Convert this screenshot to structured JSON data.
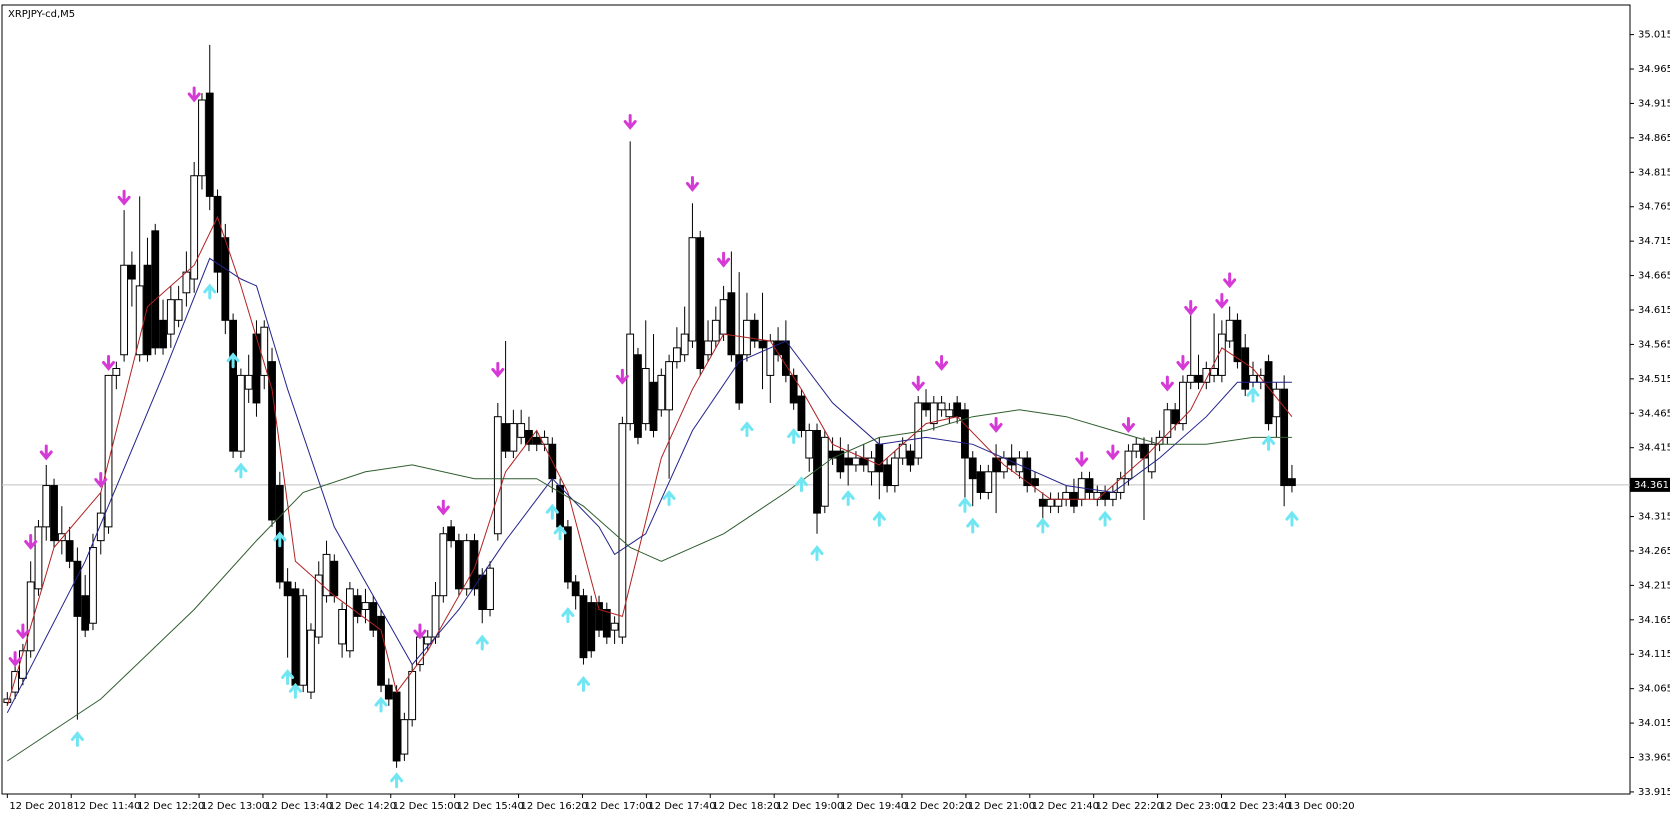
{
  "chart_data": {
    "type": "candlestick",
    "title": "XRPJPY-cd,M5",
    "ylim": [
      33.912,
      35.058
    ],
    "yticks": [
      35.015,
      34.965,
      34.915,
      34.865,
      34.815,
      34.765,
      34.715,
      34.665,
      34.615,
      34.565,
      34.515,
      34.465,
      34.415,
      34.365,
      34.315,
      34.265,
      34.215,
      34.165,
      34.115,
      34.065,
      34.015,
      33.965,
      33.915
    ],
    "current_price": 34.361,
    "x_labels": [
      "12 Dec 2018",
      "12 Dec 11:40",
      "12 Dec 12:20",
      "12 Dec 13:00",
      "12 Dec 13:40",
      "12 Dec 14:20",
      "12 Dec 15:00",
      "12 Dec 15:40",
      "12 Dec 16:20",
      "12 Dec 17:00",
      "12 Dec 17:40",
      "12 Dec 18:20",
      "12 Dec 19:00",
      "12 Dec 19:40",
      "12 Dec 20:20",
      "12 Dec 21:00",
      "12 Dec 21:40",
      "12 Dec 22:20",
      "12 Dec 23:00",
      "12 Dec 23:40",
      "13 Dec 00:20"
    ],
    "up_color": "#ffffff",
    "down_color": "#000000",
    "ohlc": [
      [
        34.045,
        34.06,
        34.04,
        34.05
      ],
      [
        34.06,
        34.1,
        34.05,
        34.09
      ],
      [
        34.08,
        34.13,
        34.07,
        34.12
      ],
      [
        34.12,
        34.25,
        34.11,
        34.22
      ],
      [
        34.21,
        34.31,
        34.2,
        34.3
      ],
      [
        34.3,
        34.39,
        34.28,
        34.36
      ],
      [
        34.36,
        34.37,
        34.27,
        34.28
      ],
      [
        34.28,
        34.33,
        34.26,
        34.29
      ],
      [
        34.28,
        34.3,
        34.24,
        34.25
      ],
      [
        34.25,
        34.27,
        34.02,
        34.17
      ],
      [
        34.2,
        34.23,
        34.14,
        34.15
      ],
      [
        34.16,
        34.29,
        34.15,
        34.27
      ],
      [
        34.28,
        34.35,
        34.26,
        34.32
      ],
      [
        34.3,
        34.52,
        34.29,
        34.52
      ],
      [
        34.52,
        34.54,
        34.5,
        34.53
      ],
      [
        34.55,
        34.76,
        34.54,
        34.68
      ],
      [
        34.68,
        34.7,
        34.62,
        34.66
      ],
      [
        34.55,
        34.78,
        34.54,
        34.65
      ],
      [
        34.68,
        34.72,
        34.54,
        34.55
      ],
      [
        34.73,
        34.74,
        34.55,
        34.56
      ],
      [
        34.6,
        34.63,
        34.55,
        34.56
      ],
      [
        34.58,
        34.65,
        34.56,
        34.63
      ],
      [
        34.6,
        34.65,
        34.59,
        34.63
      ],
      [
        34.64,
        34.7,
        34.62,
        34.67
      ],
      [
        34.66,
        34.83,
        34.64,
        34.81
      ],
      [
        34.81,
        34.93,
        34.79,
        34.92
      ],
      [
        34.93,
        35.0,
        34.76,
        34.78
      ],
      [
        34.78,
        34.79,
        34.64,
        34.67
      ],
      [
        34.72,
        34.74,
        34.58,
        34.6
      ],
      [
        34.6,
        34.61,
        34.4,
        34.41
      ],
      [
        34.41,
        34.53,
        34.4,
        34.52
      ],
      [
        34.5,
        34.55,
        34.48,
        34.52
      ],
      [
        34.58,
        34.6,
        34.46,
        34.48
      ],
      [
        34.52,
        34.6,
        34.5,
        34.59
      ],
      [
        34.54,
        34.56,
        34.3,
        34.31
      ],
      [
        34.36,
        34.38,
        34.21,
        34.22
      ],
      [
        34.22,
        34.24,
        34.11,
        34.2
      ],
      [
        34.21,
        34.22,
        34.06,
        34.07
      ],
      [
        34.07,
        34.21,
        34.06,
        34.2
      ],
      [
        34.06,
        34.16,
        34.05,
        34.15
      ],
      [
        34.14,
        34.25,
        34.13,
        34.23
      ],
      [
        34.2,
        34.28,
        34.19,
        34.26
      ],
      [
        34.25,
        34.26,
        34.19,
        34.2
      ],
      [
        34.13,
        34.19,
        34.11,
        34.18
      ],
      [
        34.12,
        34.22,
        34.11,
        34.21
      ],
      [
        34.2,
        34.21,
        34.16,
        34.17
      ],
      [
        34.18,
        34.21,
        34.16,
        34.19
      ],
      [
        34.19,
        34.2,
        34.14,
        34.15
      ],
      [
        34.17,
        34.18,
        34.06,
        34.07
      ],
      [
        34.07,
        34.08,
        34.04,
        34.05
      ],
      [
        34.06,
        34.07,
        33.95,
        33.96
      ],
      [
        33.97,
        34.03,
        33.96,
        34.02
      ],
      [
        34.02,
        34.1,
        34.01,
        34.09
      ],
      [
        34.1,
        34.15,
        34.09,
        34.14
      ],
      [
        34.13,
        34.15,
        34.12,
        34.14
      ],
      [
        34.14,
        34.22,
        34.13,
        34.2
      ],
      [
        34.2,
        34.3,
        34.19,
        34.29
      ],
      [
        34.3,
        34.31,
        34.27,
        34.28
      ],
      [
        34.28,
        34.29,
        34.2,
        34.21
      ],
      [
        34.21,
        34.29,
        34.2,
        34.28
      ],
      [
        34.28,
        34.29,
        34.2,
        34.21
      ],
      [
        34.23,
        34.24,
        34.16,
        34.18
      ],
      [
        34.18,
        34.25,
        34.17,
        34.24
      ],
      [
        34.29,
        34.48,
        34.28,
        34.46
      ],
      [
        34.45,
        34.57,
        34.4,
        34.41
      ],
      [
        34.41,
        34.47,
        34.4,
        34.45
      ],
      [
        34.43,
        34.47,
        34.42,
        34.45
      ],
      [
        34.44,
        34.46,
        34.41,
        34.42
      ],
      [
        34.43,
        34.44,
        34.41,
        34.42
      ],
      [
        34.42,
        34.44,
        34.41,
        34.43
      ],
      [
        34.42,
        34.43,
        34.35,
        34.37
      ],
      [
        34.36,
        34.37,
        34.29,
        34.3
      ],
      [
        34.3,
        34.31,
        34.21,
        34.22
      ],
      [
        34.22,
        34.23,
        34.18,
        34.2
      ],
      [
        34.2,
        34.21,
        34.1,
        34.11
      ],
      [
        34.19,
        34.2,
        34.11,
        34.12
      ],
      [
        34.19,
        34.2,
        34.14,
        34.15
      ],
      [
        34.18,
        34.19,
        34.13,
        34.14
      ],
      [
        34.15,
        34.17,
        34.13,
        34.16
      ],
      [
        34.14,
        34.46,
        34.13,
        34.45
      ],
      [
        34.45,
        34.86,
        34.44,
        34.58
      ],
      [
        34.55,
        34.56,
        34.42,
        34.43
      ],
      [
        34.45,
        34.6,
        34.44,
        34.53
      ],
      [
        34.51,
        34.58,
        34.43,
        34.44
      ],
      [
        34.47,
        34.53,
        34.46,
        34.52
      ],
      [
        34.47,
        34.55,
        34.37,
        34.54
      ],
      [
        34.54,
        34.59,
        34.53,
        34.56
      ],
      [
        34.55,
        34.62,
        34.54,
        34.58
      ],
      [
        34.57,
        34.77,
        34.56,
        34.72
      ],
      [
        34.72,
        34.73,
        34.52,
        34.53
      ],
      [
        34.55,
        34.6,
        34.54,
        34.57
      ],
      [
        34.57,
        34.62,
        34.56,
        34.6
      ],
      [
        34.58,
        34.65,
        34.57,
        34.63
      ],
      [
        34.64,
        34.7,
        34.54,
        34.55
      ],
      [
        34.55,
        34.67,
        34.47,
        34.48
      ],
      [
        34.55,
        34.64,
        34.54,
        34.6
      ],
      [
        34.6,
        34.61,
        34.56,
        34.57
      ],
      [
        34.57,
        34.64,
        34.5,
        34.56
      ],
      [
        34.52,
        34.58,
        34.48,
        34.57
      ],
      [
        34.57,
        34.59,
        34.54,
        34.55
      ],
      [
        34.57,
        34.6,
        34.51,
        34.52
      ],
      [
        34.52,
        34.53,
        34.47,
        34.48
      ],
      [
        34.49,
        34.5,
        34.43,
        34.44
      ],
      [
        34.4,
        34.45,
        34.38,
        34.44
      ],
      [
        34.44,
        34.45,
        34.29,
        34.32
      ],
      [
        34.33,
        34.44,
        34.32,
        34.43
      ],
      [
        34.41,
        34.43,
        34.39,
        34.4
      ],
      [
        34.41,
        34.43,
        34.37,
        34.38
      ],
      [
        34.4,
        34.42,
        34.36,
        34.39
      ],
      [
        34.39,
        34.41,
        34.38,
        34.4
      ],
      [
        34.4,
        34.42,
        34.38,
        34.39
      ],
      [
        34.38,
        34.41,
        34.36,
        34.4
      ],
      [
        34.42,
        34.43,
        34.34,
        34.38
      ],
      [
        34.39,
        34.4,
        34.35,
        34.36
      ],
      [
        34.36,
        34.41,
        34.35,
        34.4
      ],
      [
        34.4,
        34.43,
        34.39,
        34.42
      ],
      [
        34.41,
        34.42,
        34.38,
        34.39
      ],
      [
        34.4,
        34.49,
        34.39,
        34.48
      ],
      [
        34.48,
        34.5,
        34.46,
        34.47
      ],
      [
        34.45,
        34.49,
        34.44,
        34.48
      ],
      [
        34.47,
        34.49,
        34.46,
        34.48
      ],
      [
        34.46,
        34.48,
        34.45,
        34.47
      ],
      [
        34.48,
        34.49,
        34.45,
        34.46
      ],
      [
        34.47,
        34.48,
        34.34,
        34.4
      ],
      [
        34.4,
        34.41,
        34.33,
        34.37
      ],
      [
        34.38,
        34.39,
        34.34,
        34.35
      ],
      [
        34.35,
        34.39,
        34.34,
        34.38
      ],
      [
        34.4,
        34.42,
        34.32,
        34.38
      ],
      [
        34.38,
        34.41,
        34.37,
        34.4
      ],
      [
        34.4,
        34.42,
        34.38,
        34.39
      ],
      [
        34.38,
        34.41,
        34.37,
        34.4
      ],
      [
        34.4,
        34.41,
        34.35,
        34.36
      ],
      [
        34.37,
        34.38,
        34.35,
        34.36
      ],
      [
        34.34,
        34.35,
        34.31,
        34.33
      ],
      [
        34.33,
        34.35,
        34.32,
        34.34
      ],
      [
        34.33,
        34.35,
        34.32,
        34.34
      ],
      [
        34.34,
        34.36,
        34.33,
        34.35
      ],
      [
        34.35,
        34.37,
        34.32,
        34.33
      ],
      [
        34.34,
        34.38,
        34.33,
        34.37
      ],
      [
        34.37,
        34.38,
        34.34,
        34.35
      ],
      [
        34.34,
        34.36,
        34.33,
        34.35
      ],
      [
        34.35,
        34.36,
        34.33,
        34.34
      ],
      [
        34.34,
        34.36,
        34.33,
        34.35
      ],
      [
        34.35,
        34.38,
        34.34,
        34.37
      ],
      [
        34.37,
        34.42,
        34.36,
        34.41
      ],
      [
        34.41,
        34.43,
        34.4,
        34.42
      ],
      [
        34.42,
        34.43,
        34.31,
        34.4
      ],
      [
        34.38,
        34.43,
        34.37,
        34.42
      ],
      [
        34.42,
        34.44,
        34.41,
        34.43
      ],
      [
        34.43,
        34.48,
        34.42,
        34.47
      ],
      [
        34.47,
        34.48,
        34.44,
        34.45
      ],
      [
        34.45,
        34.52,
        34.44,
        34.51
      ],
      [
        34.51,
        34.62,
        34.5,
        34.52
      ],
      [
        34.52,
        34.55,
        34.5,
        34.51
      ],
      [
        34.51,
        34.54,
        34.5,
        34.53
      ],
      [
        34.52,
        34.61,
        34.51,
        34.53
      ],
      [
        34.52,
        34.6,
        34.51,
        34.58
      ],
      [
        34.57,
        34.62,
        34.56,
        34.6
      ],
      [
        34.6,
        34.61,
        34.53,
        34.54
      ],
      [
        34.56,
        34.58,
        34.49,
        34.5
      ],
      [
        34.51,
        34.54,
        34.5,
        34.52
      ],
      [
        34.51,
        34.53,
        34.5,
        34.52
      ],
      [
        34.54,
        34.55,
        34.44,
        34.45
      ],
      [
        34.46,
        34.51,
        34.43,
        34.5
      ],
      [
        34.5,
        34.52,
        34.33,
        34.36
      ],
      [
        34.37,
        34.39,
        34.35,
        34.36
      ]
    ],
    "series": [
      {
        "color": "#b22222",
        "x": [
          0,
          6,
          12,
          18,
          24,
          27,
          30,
          34,
          37,
          42,
          48,
          50,
          54,
          60,
          64,
          68,
          72,
          76,
          79,
          84,
          88,
          92,
          98,
          102,
          106,
          112,
          118,
          122,
          128,
          134,
          140,
          146,
          152,
          156,
          160,
          165
        ],
        "values": [
          34.04,
          34.27,
          34.35,
          34.62,
          34.68,
          34.75,
          34.65,
          34.5,
          34.25,
          34.2,
          34.15,
          34.06,
          34.12,
          34.24,
          34.38,
          34.44,
          34.35,
          34.18,
          34.17,
          34.4,
          34.5,
          34.58,
          34.57,
          34.5,
          34.42,
          34.39,
          34.45,
          34.46,
          34.39,
          34.34,
          34.34,
          34.4,
          34.47,
          34.56,
          34.53,
          34.46
        ]
      },
      {
        "color": "#23238c",
        "x": [
          0,
          10,
          20,
          26,
          30,
          32,
          36,
          42,
          48,
          52,
          58,
          64,
          70,
          76,
          78,
          82,
          88,
          94,
          100,
          106,
          112,
          118,
          124,
          130,
          136,
          142,
          148,
          154,
          158,
          165
        ],
        "values": [
          34.03,
          34.25,
          34.52,
          34.69,
          34.66,
          34.65,
          34.5,
          34.3,
          34.18,
          34.1,
          34.18,
          34.28,
          34.37,
          34.3,
          34.26,
          34.29,
          34.44,
          34.54,
          34.57,
          34.48,
          34.42,
          34.43,
          34.42,
          34.39,
          34.36,
          34.35,
          34.4,
          34.46,
          34.51,
          34.51
        ]
      },
      {
        "color": "#2f5e2f",
        "x": [
          0,
          12,
          24,
          32,
          38,
          46,
          52,
          60,
          68,
          74,
          80,
          84,
          92,
          100,
          106,
          112,
          118,
          124,
          130,
          136,
          142,
          148,
          154,
          160,
          165
        ],
        "values": [
          33.96,
          34.05,
          34.18,
          34.28,
          34.35,
          34.38,
          34.39,
          34.37,
          34.37,
          34.33,
          34.27,
          34.25,
          34.29,
          34.35,
          34.4,
          34.43,
          34.44,
          34.46,
          34.47,
          34.46,
          34.44,
          34.42,
          34.42,
          34.43,
          34.43
        ]
      }
    ],
    "down_arrows": {
      "color": "#d63ad6",
      "index": [
        1,
        2,
        3,
        5,
        12,
        13,
        15,
        24,
        53,
        56,
        63,
        79,
        80,
        88,
        92,
        117,
        120,
        127,
        138,
        142,
        144,
        149,
        151,
        152,
        156,
        157
      ],
      "values": [
        34.1,
        34.14,
        34.27,
        34.4,
        34.36,
        34.53,
        34.77,
        34.92,
        34.14,
        34.32,
        34.52,
        34.51,
        34.88,
        34.79,
        34.68,
        34.5,
        34.53,
        34.44,
        34.39,
        34.4,
        34.44,
        34.5,
        34.53,
        34.61,
        34.62,
        34.65
      ]
    },
    "up_arrows": {
      "color": "#6fe6f2",
      "index": [
        9,
        26,
        29,
        30,
        35,
        36,
        37,
        48,
        50,
        61,
        70,
        71,
        72,
        74,
        85,
        95,
        101,
        102,
        104,
        108,
        112,
        123,
        124,
        133,
        141,
        160,
        162,
        165
      ],
      "values": [
        34.0,
        34.65,
        34.55,
        34.39,
        34.29,
        34.09,
        34.07,
        34.05,
        33.94,
        34.14,
        34.33,
        34.3,
        34.18,
        34.08,
        34.35,
        34.45,
        34.44,
        34.37,
        34.27,
        34.35,
        34.32,
        34.34,
        34.31,
        34.31,
        34.32,
        34.5,
        34.43,
        34.32
      ]
    }
  }
}
